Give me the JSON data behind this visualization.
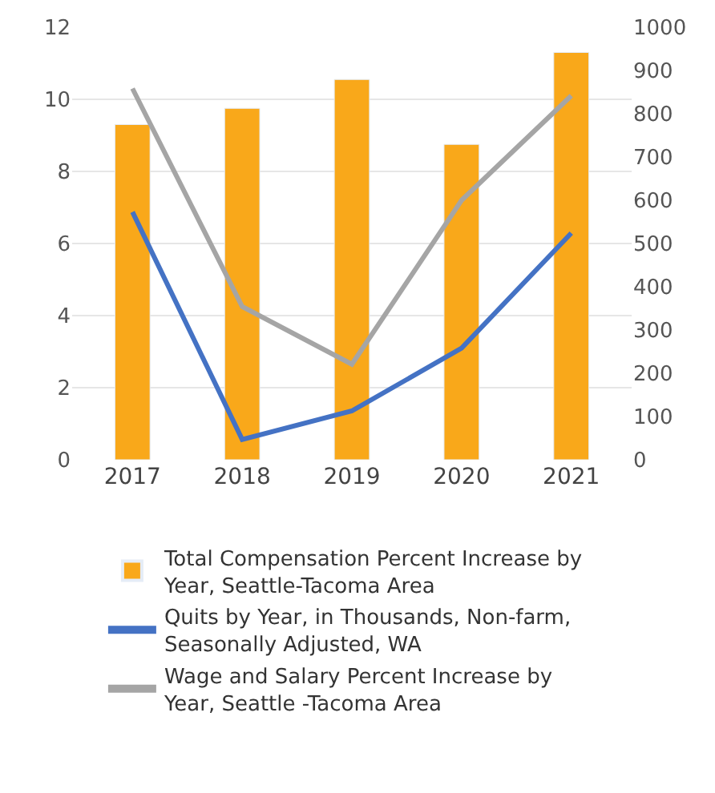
{
  "chart_data": {
    "type": "bar",
    "categories": [
      "2017",
      "2018",
      "2019",
      "2020",
      "2021"
    ],
    "series": [
      {
        "name": "Total Compensation Percent Increase by Year, Seattle-Tacoma Area",
        "color": "#f9a81a",
        "values": [
          9.3,
          9.75,
          10.55,
          8.75,
          11.3
        ]
      },
      {
        "name": "Quits by Year, in Thousands, Non-farm, Seasonally Adjusted, WA",
        "type": "line",
        "axis": "y2",
        "color": "#4472c4",
        "values": [
          573,
          47,
          113,
          258,
          524
        ]
      },
      {
        "name": "Wage and Salary Percent Increase by Year, Seattle -Tacoma Area",
        "type": "line",
        "color": "#a5a5a5",
        "values": [
          10.3,
          4.25,
          2.65,
          7.2,
          10.1
        ]
      }
    ],
    "ylim": [
      0,
      12
    ],
    "yticks": [
      0,
      2,
      4,
      6,
      8,
      10,
      12
    ],
    "y2lim": [
      0,
      1000
    ],
    "y2ticks": [
      0,
      100,
      200,
      300,
      400,
      500,
      600,
      700,
      800,
      900,
      1000
    ],
    "grid": "y",
    "legend": "bottom",
    "marker": "none"
  }
}
